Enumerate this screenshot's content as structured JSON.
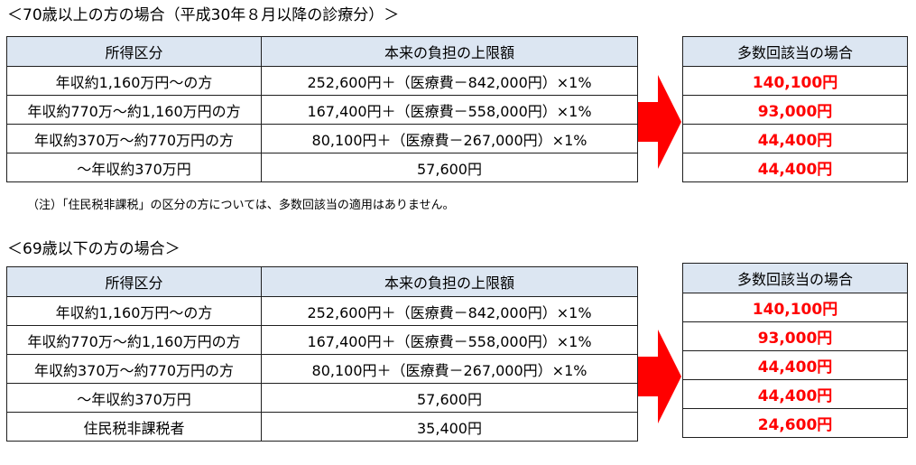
{
  "section1": {
    "heading": "＜70歳以上の方の場合（平成30年８月以降の診療分）＞",
    "headers": [
      "所得区分",
      "本来の負担の上限額"
    ],
    "rows": [
      [
        "年収約1,160万円～の方",
        "252,600円＋（医療費－842,000円）×1%"
      ],
      [
        "年収約770万～約1,160万円の方",
        "167,400円＋（医療費－558,000円）×1%"
      ],
      [
        "年収約370万～約770万円の方",
        "80,100円＋（医療費－267,000円）×1%"
      ],
      [
        "～年収約370万円",
        "57,600円"
      ]
    ],
    "multi_header": "多数回該当の場合",
    "multi_values": [
      "140,100円",
      "93,000円",
      "44,400円",
      "44,400円"
    ],
    "note": "（注）「住民税非課税」の区分の方については、多数回該当の適用はありません。"
  },
  "section2": {
    "heading": "＜69歳以下の方の場合＞",
    "headers": [
      "所得区分",
      "本来の負担の上限額"
    ],
    "rows": [
      [
        "年収約1,160万円～の方",
        "252,600円＋（医療費－842,000円）×1%"
      ],
      [
        "年収約770万～約1,160万円の方",
        "167,400円＋（医療費－558,000円）×1%"
      ],
      [
        "年収約370万～約770万円の方",
        "80,100円＋（医療費－267,000円）×1%"
      ],
      [
        "～年収約370万円",
        "57,600円"
      ],
      [
        "住民税非課税者",
        "35,400円"
      ]
    ],
    "multi_header": "多数回該当の場合",
    "multi_values": [
      "140,100円",
      "93,000円",
      "44,400円",
      "44,400円",
      "24,600円"
    ]
  },
  "colors": {
    "header_bg": "#dce6f2",
    "highlight_text": "#ff0000",
    "arrow": "#ff0000",
    "border": "#1f1f1f"
  },
  "icons": {
    "arrow": "right-arrow-icon"
  }
}
